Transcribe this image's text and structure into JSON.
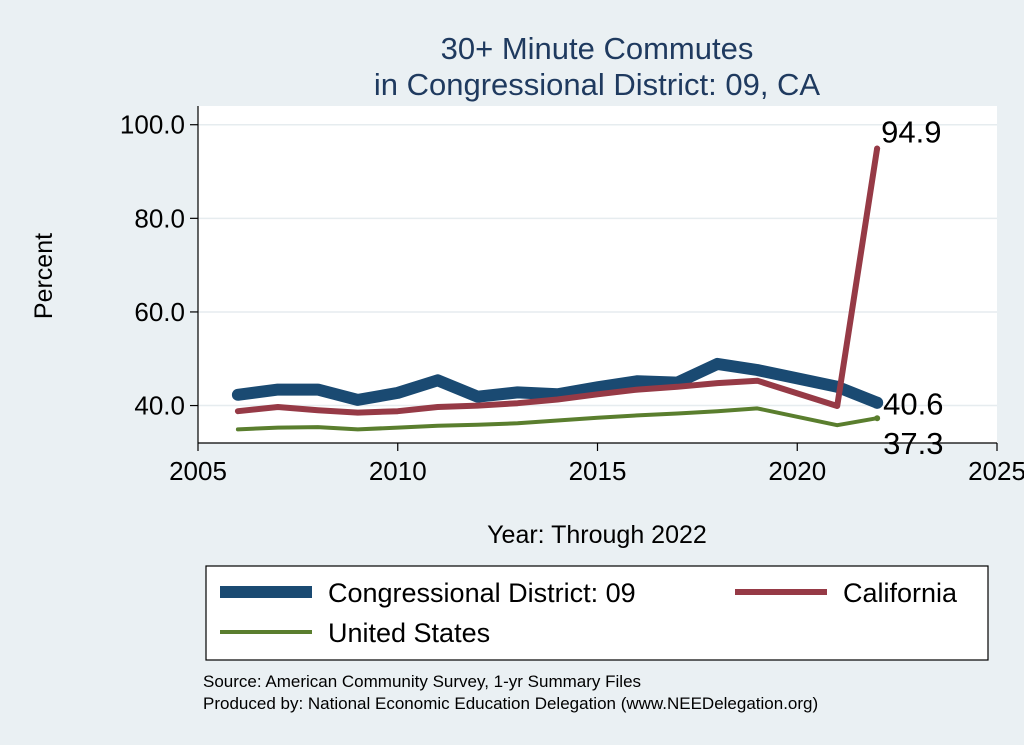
{
  "chart_data": {
    "type": "line",
    "title": [
      "30+ Minute Commutes",
      "in Congressional District:  09, CA"
    ],
    "xlabel": "Year: Through 2022",
    "ylabel": "Percent",
    "xlim": [
      2005,
      2025
    ],
    "ylim": [
      32,
      104
    ],
    "xticks": [
      2005,
      2010,
      2015,
      2020,
      2025
    ],
    "yticks": [
      40,
      60,
      80,
      100
    ],
    "ytick_labels": [
      "40.0",
      "60.0",
      "80.0",
      "100.0"
    ],
    "grid": true,
    "x": [
      2006,
      2007,
      2008,
      2009,
      2010,
      2011,
      2012,
      2013,
      2014,
      2015,
      2016,
      2017,
      2018,
      2019,
      2020,
      2021,
      2022
    ],
    "series": [
      {
        "name": "Congressional District:  09",
        "color": "#1a4a72",
        "values": [
          42.3,
          43.4,
          43.4,
          41.2,
          42.7,
          45.4,
          41.9,
          42.8,
          42.4,
          43.9,
          45.2,
          44.9,
          48.9,
          47.6,
          45.8,
          44.0,
          40.6
        ],
        "end_label": "40.6"
      },
      {
        "name": "California",
        "color": "#963a46",
        "values": [
          38.8,
          39.7,
          39.0,
          38.5,
          38.8,
          39.7,
          40.0,
          40.5,
          41.3,
          42.4,
          43.4,
          44.0,
          44.8,
          45.3,
          null,
          39.9,
          94.9
        ],
        "end_label": "94.9"
      },
      {
        "name": "United States",
        "color": "#5a7e2e",
        "values": [
          34.9,
          35.3,
          35.4,
          34.9,
          35.3,
          35.7,
          35.9,
          36.2,
          36.8,
          37.4,
          37.9,
          38.3,
          38.8,
          39.4,
          null,
          35.8,
          37.3
        ],
        "end_label": "37.3"
      }
    ],
    "legend_position": "bottom"
  },
  "legend": {
    "items": [
      {
        "label": "Congressional District:  09",
        "color": "#1a4a72"
      },
      {
        "label": "California",
        "color": "#963a46"
      },
      {
        "label": "United States",
        "color": "#5a7e2e"
      }
    ]
  },
  "source": {
    "line1": "Source: American Community Survey, 1-yr Summary Files",
    "line2": "Produced by: National Economic Education Delegation (www.NEEDelegation.org)"
  }
}
